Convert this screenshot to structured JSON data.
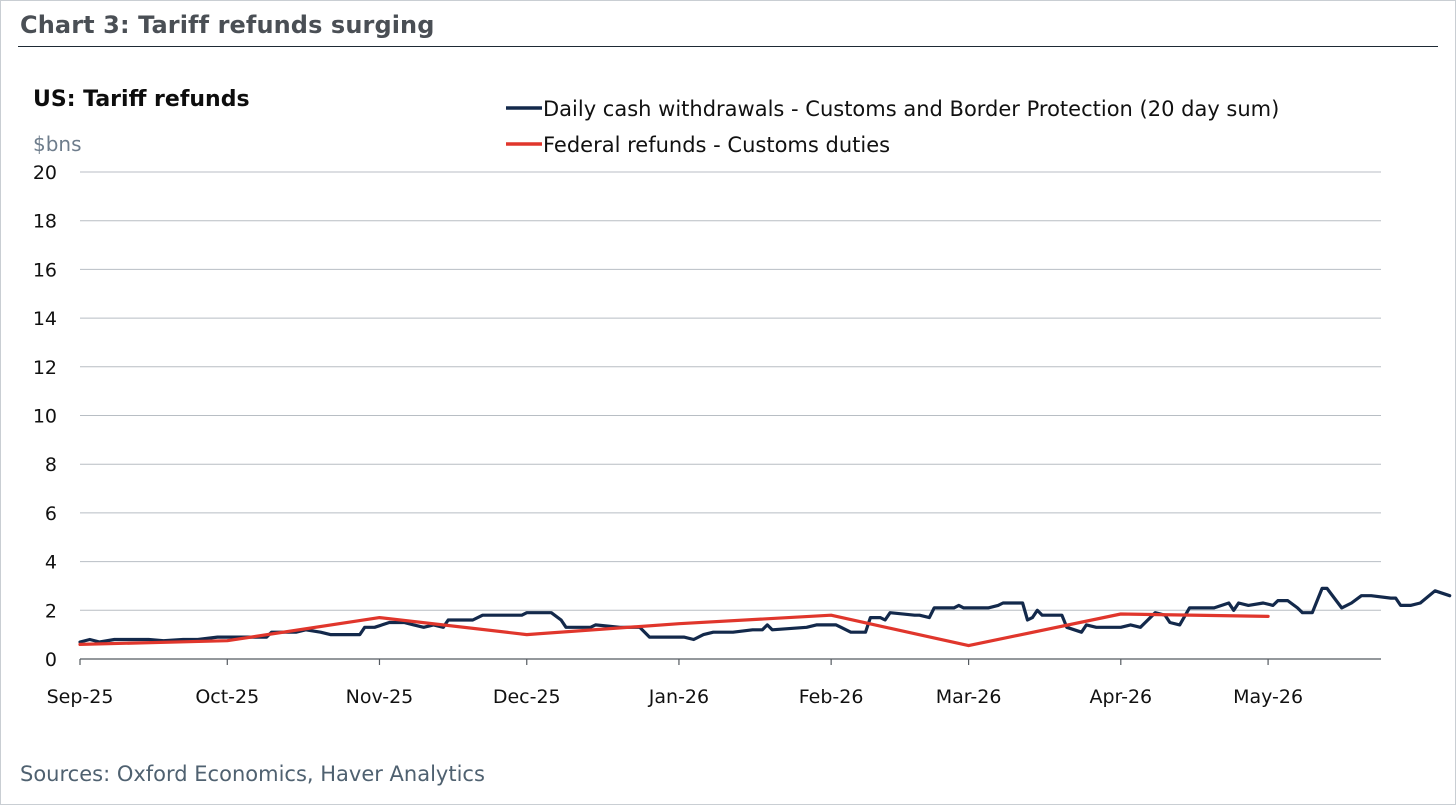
{
  "header": {
    "title": "Chart 3: Tariff refunds surging",
    "source": "Sources: Oxford Economics, Haver Analytics"
  },
  "colors": {
    "series_navy": "#13294b",
    "series_red": "#e0362c",
    "grid": "#b8bec4"
  },
  "chart_data": {
    "type": "line",
    "title": "US: Tariff refunds",
    "ylabel": "$bns",
    "xlabel": "",
    "ylim": [
      0,
      20
    ],
    "yticks": [
      0,
      2,
      4,
      6,
      8,
      10,
      12,
      14,
      16,
      18,
      20
    ],
    "xlim": [
      "2025-09-01",
      "2026-05-24"
    ],
    "xticks": [
      {
        "date": "2025-09-01",
        "label": "Sep-25"
      },
      {
        "date": "2025-10-01",
        "label": "Oct-25"
      },
      {
        "date": "2025-11-01",
        "label": "Nov-25"
      },
      {
        "date": "2025-12-01",
        "label": "Dec-25"
      },
      {
        "date": "2026-01-01",
        "label": "Jan-26"
      },
      {
        "date": "2026-02-01",
        "label": "Feb-26"
      },
      {
        "date": "2026-03-01",
        "label": "Mar-26"
      },
      {
        "date": "2026-04-01",
        "label": "Apr-26"
      },
      {
        "date": "2026-05-01",
        "label": "May-26"
      }
    ],
    "grid": true,
    "legend_position": "top",
    "series": [
      {
        "name": "Daily cash withdrawals - Customs and Border Protection (20 day sum)",
        "color": "#13294b",
        "points": [
          [
            "2025-09-01",
            0.7
          ],
          [
            "2025-09-03",
            0.8
          ],
          [
            "2025-09-05",
            0.7
          ],
          [
            "2025-09-08",
            0.8
          ],
          [
            "2025-09-15",
            0.8
          ],
          [
            "2025-09-18",
            0.75
          ],
          [
            "2025-09-22",
            0.8
          ],
          [
            "2025-09-25",
            0.8
          ],
          [
            "2025-09-29",
            0.9
          ],
          [
            "2025-10-09",
            0.9
          ],
          [
            "2025-10-10",
            1.1
          ],
          [
            "2025-10-15",
            1.1
          ],
          [
            "2025-10-17",
            1.2
          ],
          [
            "2025-10-20",
            1.1
          ],
          [
            "2025-10-22",
            1.0
          ],
          [
            "2025-10-28",
            1.0
          ],
          [
            "2025-10-29",
            1.3
          ],
          [
            "2025-10-31",
            1.3
          ],
          [
            "2025-11-03",
            1.5
          ],
          [
            "2025-11-06",
            1.5
          ],
          [
            "2025-11-08",
            1.4
          ],
          [
            "2025-11-10",
            1.3
          ],
          [
            "2025-11-12",
            1.4
          ],
          [
            "2025-11-14",
            1.3
          ],
          [
            "2025-11-15",
            1.6
          ],
          [
            "2025-11-20",
            1.6
          ],
          [
            "2025-11-22",
            1.8
          ],
          [
            "2025-11-27",
            1.8
          ],
          [
            "2025-11-30",
            1.8
          ],
          [
            "2025-12-01",
            1.9
          ],
          [
            "2025-12-06",
            1.9
          ],
          [
            "2025-12-08",
            1.6
          ],
          [
            "2025-12-09",
            1.3
          ],
          [
            "2025-12-14",
            1.3
          ],
          [
            "2025-12-15",
            1.4
          ],
          [
            "2025-12-20",
            1.3
          ],
          [
            "2025-12-24",
            1.3
          ],
          [
            "2025-12-26",
            0.9
          ],
          [
            "2025-12-31",
            0.9
          ],
          [
            "2026-01-02",
            0.9
          ],
          [
            "2026-01-04",
            0.8
          ],
          [
            "2026-01-06",
            1.0
          ],
          [
            "2026-01-08",
            1.1
          ],
          [
            "2026-01-12",
            1.1
          ],
          [
            "2026-01-16",
            1.2
          ],
          [
            "2026-01-18",
            1.2
          ],
          [
            "2026-01-19",
            1.4
          ],
          [
            "2026-01-20",
            1.2
          ],
          [
            "2026-01-27",
            1.3
          ],
          [
            "2026-01-29",
            1.4
          ],
          [
            "2026-02-02",
            1.4
          ],
          [
            "2026-02-03",
            1.3
          ],
          [
            "2026-02-05",
            1.1
          ],
          [
            "2026-02-08",
            1.1
          ],
          [
            "2026-02-09",
            1.7
          ],
          [
            "2026-02-11",
            1.7
          ],
          [
            "2026-02-12",
            1.6
          ],
          [
            "2026-02-13",
            1.9
          ],
          [
            "2026-02-18",
            1.8
          ],
          [
            "2026-02-19",
            1.8
          ],
          [
            "2026-02-21",
            1.7
          ],
          [
            "2026-02-22",
            2.1
          ],
          [
            "2026-02-26",
            2.1
          ],
          [
            "2026-02-27",
            2.2
          ],
          [
            "2026-02-28",
            2.1
          ],
          [
            "2026-03-05",
            2.1
          ],
          [
            "2026-03-07",
            2.2
          ],
          [
            "2026-03-08",
            2.3
          ],
          [
            "2026-03-12",
            2.3
          ],
          [
            "2026-03-13",
            1.6
          ],
          [
            "2026-03-14",
            1.7
          ],
          [
            "2026-03-15",
            2.0
          ],
          [
            "2026-03-16",
            1.8
          ],
          [
            "2026-03-20",
            1.8
          ],
          [
            "2026-03-21",
            1.3
          ],
          [
            "2026-03-24",
            1.1
          ],
          [
            "2026-03-25",
            1.4
          ],
          [
            "2026-03-27",
            1.3
          ],
          [
            "2026-03-30",
            1.3
          ],
          [
            "2026-04-01",
            1.3
          ],
          [
            "2026-04-03",
            1.4
          ],
          [
            "2026-04-05",
            1.3
          ],
          [
            "2026-04-08",
            1.9
          ],
          [
            "2026-04-10",
            1.8
          ],
          [
            "2026-04-11",
            1.5
          ],
          [
            "2026-04-13",
            1.4
          ],
          [
            "2026-04-15",
            2.1
          ],
          [
            "2026-04-20",
            2.1
          ],
          [
            "2026-04-23",
            2.3
          ],
          [
            "2026-04-24",
            2.0
          ],
          [
            "2026-04-25",
            2.3
          ],
          [
            "2026-04-27",
            2.2
          ],
          [
            "2026-04-30",
            2.3
          ],
          [
            "2026-05-02",
            2.2
          ],
          [
            "2026-05-03",
            2.4
          ],
          [
            "2026-05-05",
            2.4
          ],
          [
            "2026-05-07",
            2.1
          ],
          [
            "2026-05-08",
            1.9
          ],
          [
            "2026-05-10",
            1.9
          ],
          [
            "2026-05-12",
            2.9
          ],
          [
            "2026-05-13",
            2.9
          ],
          [
            "2026-05-16",
            2.1
          ],
          [
            "2026-05-18",
            2.3
          ],
          [
            "2026-05-20",
            2.6
          ],
          [
            "2026-05-22",
            2.6
          ],
          [
            "2026-05-26",
            2.5
          ],
          [
            "2026-05-27",
            2.5
          ],
          [
            "2026-05-28",
            2.2
          ],
          [
            "2026-05-30",
            2.2
          ],
          [
            "2026-06-01",
            2.3
          ],
          [
            "2026-06-04",
            2.8
          ],
          [
            "2026-06-07",
            2.6
          ]
        ]
      },
      {
        "name": "Federal refunds - Customs duties",
        "color": "#e0362c",
        "points": [
          [
            "2025-09-01",
            0.6
          ],
          [
            "2025-10-01",
            0.75
          ],
          [
            "2025-11-01",
            1.7
          ],
          [
            "2025-12-01",
            1.0
          ],
          [
            "2026-01-01",
            1.45
          ],
          [
            "2026-02-01",
            1.8
          ],
          [
            "2026-03-01",
            0.55
          ],
          [
            "2026-04-01",
            1.85
          ],
          [
            "2026-05-01",
            1.75
          ]
        ]
      }
    ]
  }
}
